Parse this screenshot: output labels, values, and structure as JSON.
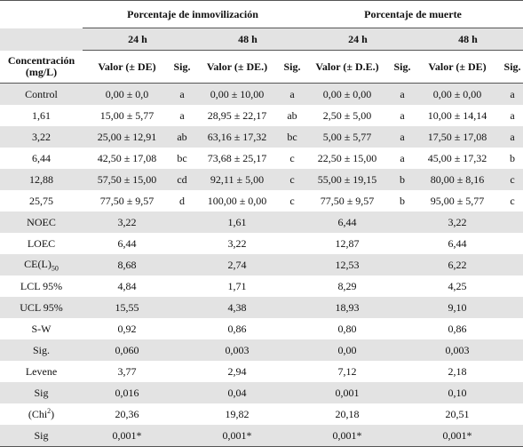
{
  "table": {
    "groups": [
      "Porcentaje de inmovilización",
      "Porcentaje de muerte"
    ],
    "times": [
      "24 h",
      "48 h",
      "24 h",
      "48 h"
    ],
    "columns": [
      "Concentración (mg/L)",
      "Valor (± DE)",
      "Sig.",
      "Valor (± DE.)",
      "Sig.",
      "Valor (± D.E.)",
      "Sig.",
      "Valor (± DE)",
      "Sig."
    ],
    "rows": [
      {
        "label": "Control",
        "cells": [
          "0,00 ± 0,0",
          "a",
          "0,00 ± 10,00",
          "a",
          "0,00 ± 0,00",
          "a",
          "0,00 ± 0,00",
          "a"
        ]
      },
      {
        "label": "1,61",
        "cells": [
          "15,00 ± 5,77",
          "a",
          "28,95 ± 22,17",
          "ab",
          "2,50 ± 5,00",
          "a",
          "10,00 ± 14,14",
          "a"
        ]
      },
      {
        "label": "3,22",
        "cells": [
          "25,00 ± 12,91",
          "ab",
          "63,16 ± 17,32",
          "bc",
          "5,00 ± 5,77",
          "a",
          "17,50 ± 17,08",
          "a"
        ]
      },
      {
        "label": "6,44",
        "cells": [
          "42,50 ± 17,08",
          "bc",
          "73,68 ± 25,17",
          "c",
          "22,50 ± 15,00",
          "a",
          "45,00 ± 17,32",
          "b"
        ]
      },
      {
        "label": "12,88",
        "cells": [
          "57,50 ± 15,00",
          "cd",
          "92,11 ± 5,00",
          "c",
          "55,00 ± 19,15",
          "b",
          "80,00 ± 8,16",
          "c"
        ]
      },
      {
        "label": "25,75",
        "cells": [
          "77,50 ± 9,57",
          "d",
          "100,00 ± 0,00",
          "c",
          "77,50 ± 9,57",
          "b",
          "95,00 ± 5,77",
          "c"
        ]
      }
    ],
    "stats": [
      {
        "label": "NOEC",
        "values": [
          "3,22",
          "1,61",
          "6,44",
          "3,22"
        ]
      },
      {
        "label": "LOEC",
        "values": [
          "6,44",
          "3,22",
          "12,87",
          "6,44"
        ]
      },
      {
        "label_parts": [
          "CE(L)",
          "50"
        ],
        "values": [
          "8,68",
          "2,74",
          "12,53",
          "6,22"
        ]
      },
      {
        "label": "LCL 95%",
        "values": [
          "4,84",
          "1,71",
          "8,29",
          "4,25"
        ]
      },
      {
        "label": "UCL 95%",
        "values": [
          "15,55",
          "4,38",
          "18,93",
          "9,10"
        ]
      },
      {
        "label": "S-W",
        "values": [
          "0,92",
          "0,86",
          "0,80",
          "0,86"
        ]
      },
      {
        "label": "Sig.",
        "values": [
          "0,060",
          "0,003",
          "0,00",
          "0,003"
        ]
      },
      {
        "label": "Levene",
        "values": [
          "3,77",
          "2,94",
          "7,12",
          "2,18"
        ]
      },
      {
        "label": "Sig",
        "values": [
          "0,016",
          "0,04",
          "0,001",
          "0,10"
        ]
      },
      {
        "label_parts": [
          "(Chi",
          "2",
          ")"
        ],
        "values": [
          "20,36",
          "19,82",
          "20,18",
          "20,51"
        ]
      },
      {
        "label": "Sig",
        "values": [
          "0,001*",
          "0,001*",
          "0,001*",
          "0,001*"
        ]
      }
    ]
  }
}
